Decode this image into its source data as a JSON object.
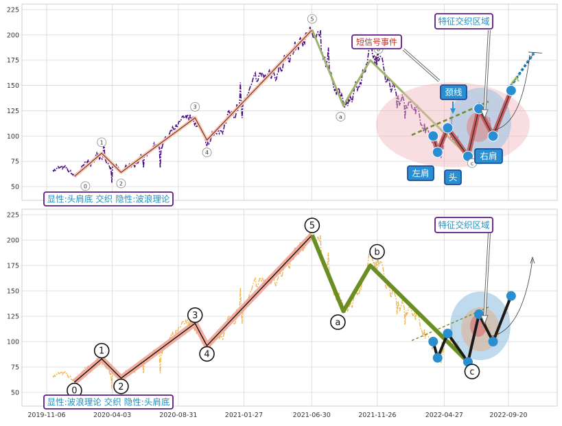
{
  "chart_data": [
    {
      "type": "line",
      "panel": "top",
      "title": "",
      "ylim": [
        35,
        230
      ],
      "yticks": [
        50,
        75,
        100,
        125,
        150,
        175,
        200,
        225
      ],
      "grid": true,
      "colors": {
        "price": "#4b0a83",
        "wave": "#c07a5a",
        "correction": "#9cb46a",
        "neck": "#6e8d2a",
        "hs": "#b94a4a",
        "marker": "#2a8fd0",
        "fill_pink": "#f2b6bc",
        "fill_blue": "#9cc4e4"
      },
      "wave_points": [
        {
          "label": "0",
          "date": "2020-01-08",
          "value": 60
        },
        {
          "label": "1",
          "date": "2020-03-10",
          "value": 83
        },
        {
          "label": "2",
          "date": "2020-04-23",
          "value": 64
        },
        {
          "label": "3",
          "date": "2020-10-08",
          "value": 118
        },
        {
          "label": "4",
          "date": "2020-11-04",
          "value": 96
        },
        {
          "label": "5",
          "date": "2021-07-01",
          "value": 205
        },
        {
          "label": "a",
          "date": "2021-09-10",
          "value": 130
        },
        {
          "label": "b",
          "date": "2021-11-10",
          "value": 175
        },
        {
          "label": "c",
          "date": "2022-06-20",
          "value": 80
        }
      ],
      "hs_points": [
        {
          "date": "2022-04-02",
          "value": 100
        },
        {
          "date": "2022-04-12",
          "value": 84
        },
        {
          "date": "2022-05-05",
          "value": 108
        },
        {
          "date": "2022-06-20",
          "value": 80
        },
        {
          "date": "2022-07-15",
          "value": 127
        },
        {
          "date": "2022-08-16",
          "value": 100
        },
        {
          "date": "2022-09-26",
          "value": 145
        }
      ],
      "annotations": {
        "box": "显性:头肩底 交织 隐性:波浪理论",
        "short_signal": "短信号事件",
        "feature_zone": "特征交织区域",
        "neckline": "颈线",
        "left_shoulder": "左肩",
        "head": "头",
        "right_shoulder": "右肩"
      }
    },
    {
      "type": "line",
      "panel": "bottom",
      "title": "",
      "ylim": [
        35,
        230
      ],
      "yticks": [
        50,
        75,
        100,
        125,
        150,
        175,
        200,
        225
      ],
      "grid": true,
      "xticks": [
        "2019-11-06",
        "2020-04-03",
        "2020-08-31",
        "2021-01-27",
        "2021-06-30",
        "2021-11-26",
        "2022-04-27",
        "2022-09-20"
      ],
      "colors": {
        "price": "#efb347",
        "wave": "#111111",
        "wave_glow": "#f0a090",
        "correction": "#6b8e23",
        "marker": "#2a8fd0"
      },
      "annotations": {
        "box": "显性:波浪理论 交织 隐性:头肩底",
        "feature_zone": "特征交织区域"
      }
    }
  ]
}
